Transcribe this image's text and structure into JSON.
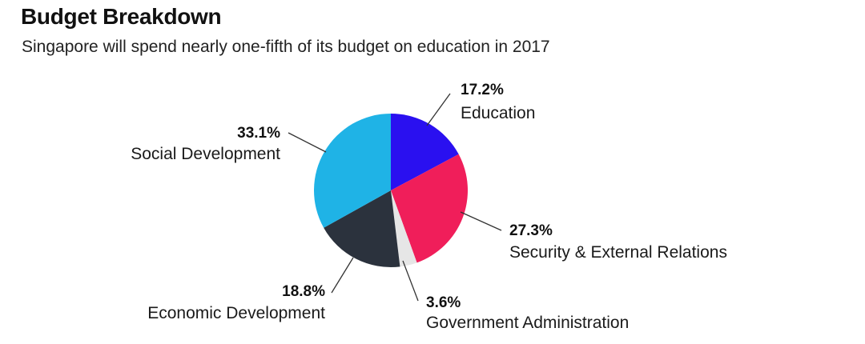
{
  "title": "Budget Breakdown",
  "subtitle": "Singapore will spend nearly one-fifth of its budget on education in 2017",
  "chart_data": {
    "type": "pie",
    "start_angle_deg": 0,
    "direction": "clockwise",
    "slices": [
      {
        "label": "Education",
        "value": 17.2,
        "value_label": "17.2%",
        "color": "#2a10f0"
      },
      {
        "label": "Security & External Relations",
        "value": 27.3,
        "value_label": "27.3%",
        "color": "#f01e5a"
      },
      {
        "label": "Government Administration",
        "value": 3.6,
        "value_label": "3.6%",
        "color": "#e6e6e6"
      },
      {
        "label": "Economic Development",
        "value": 18.8,
        "value_label": "18.8%",
        "color": "#2b323d"
      },
      {
        "label": "Social Development",
        "value": 33.1,
        "value_label": "33.1%",
        "color": "#1fb3e6"
      }
    ]
  }
}
